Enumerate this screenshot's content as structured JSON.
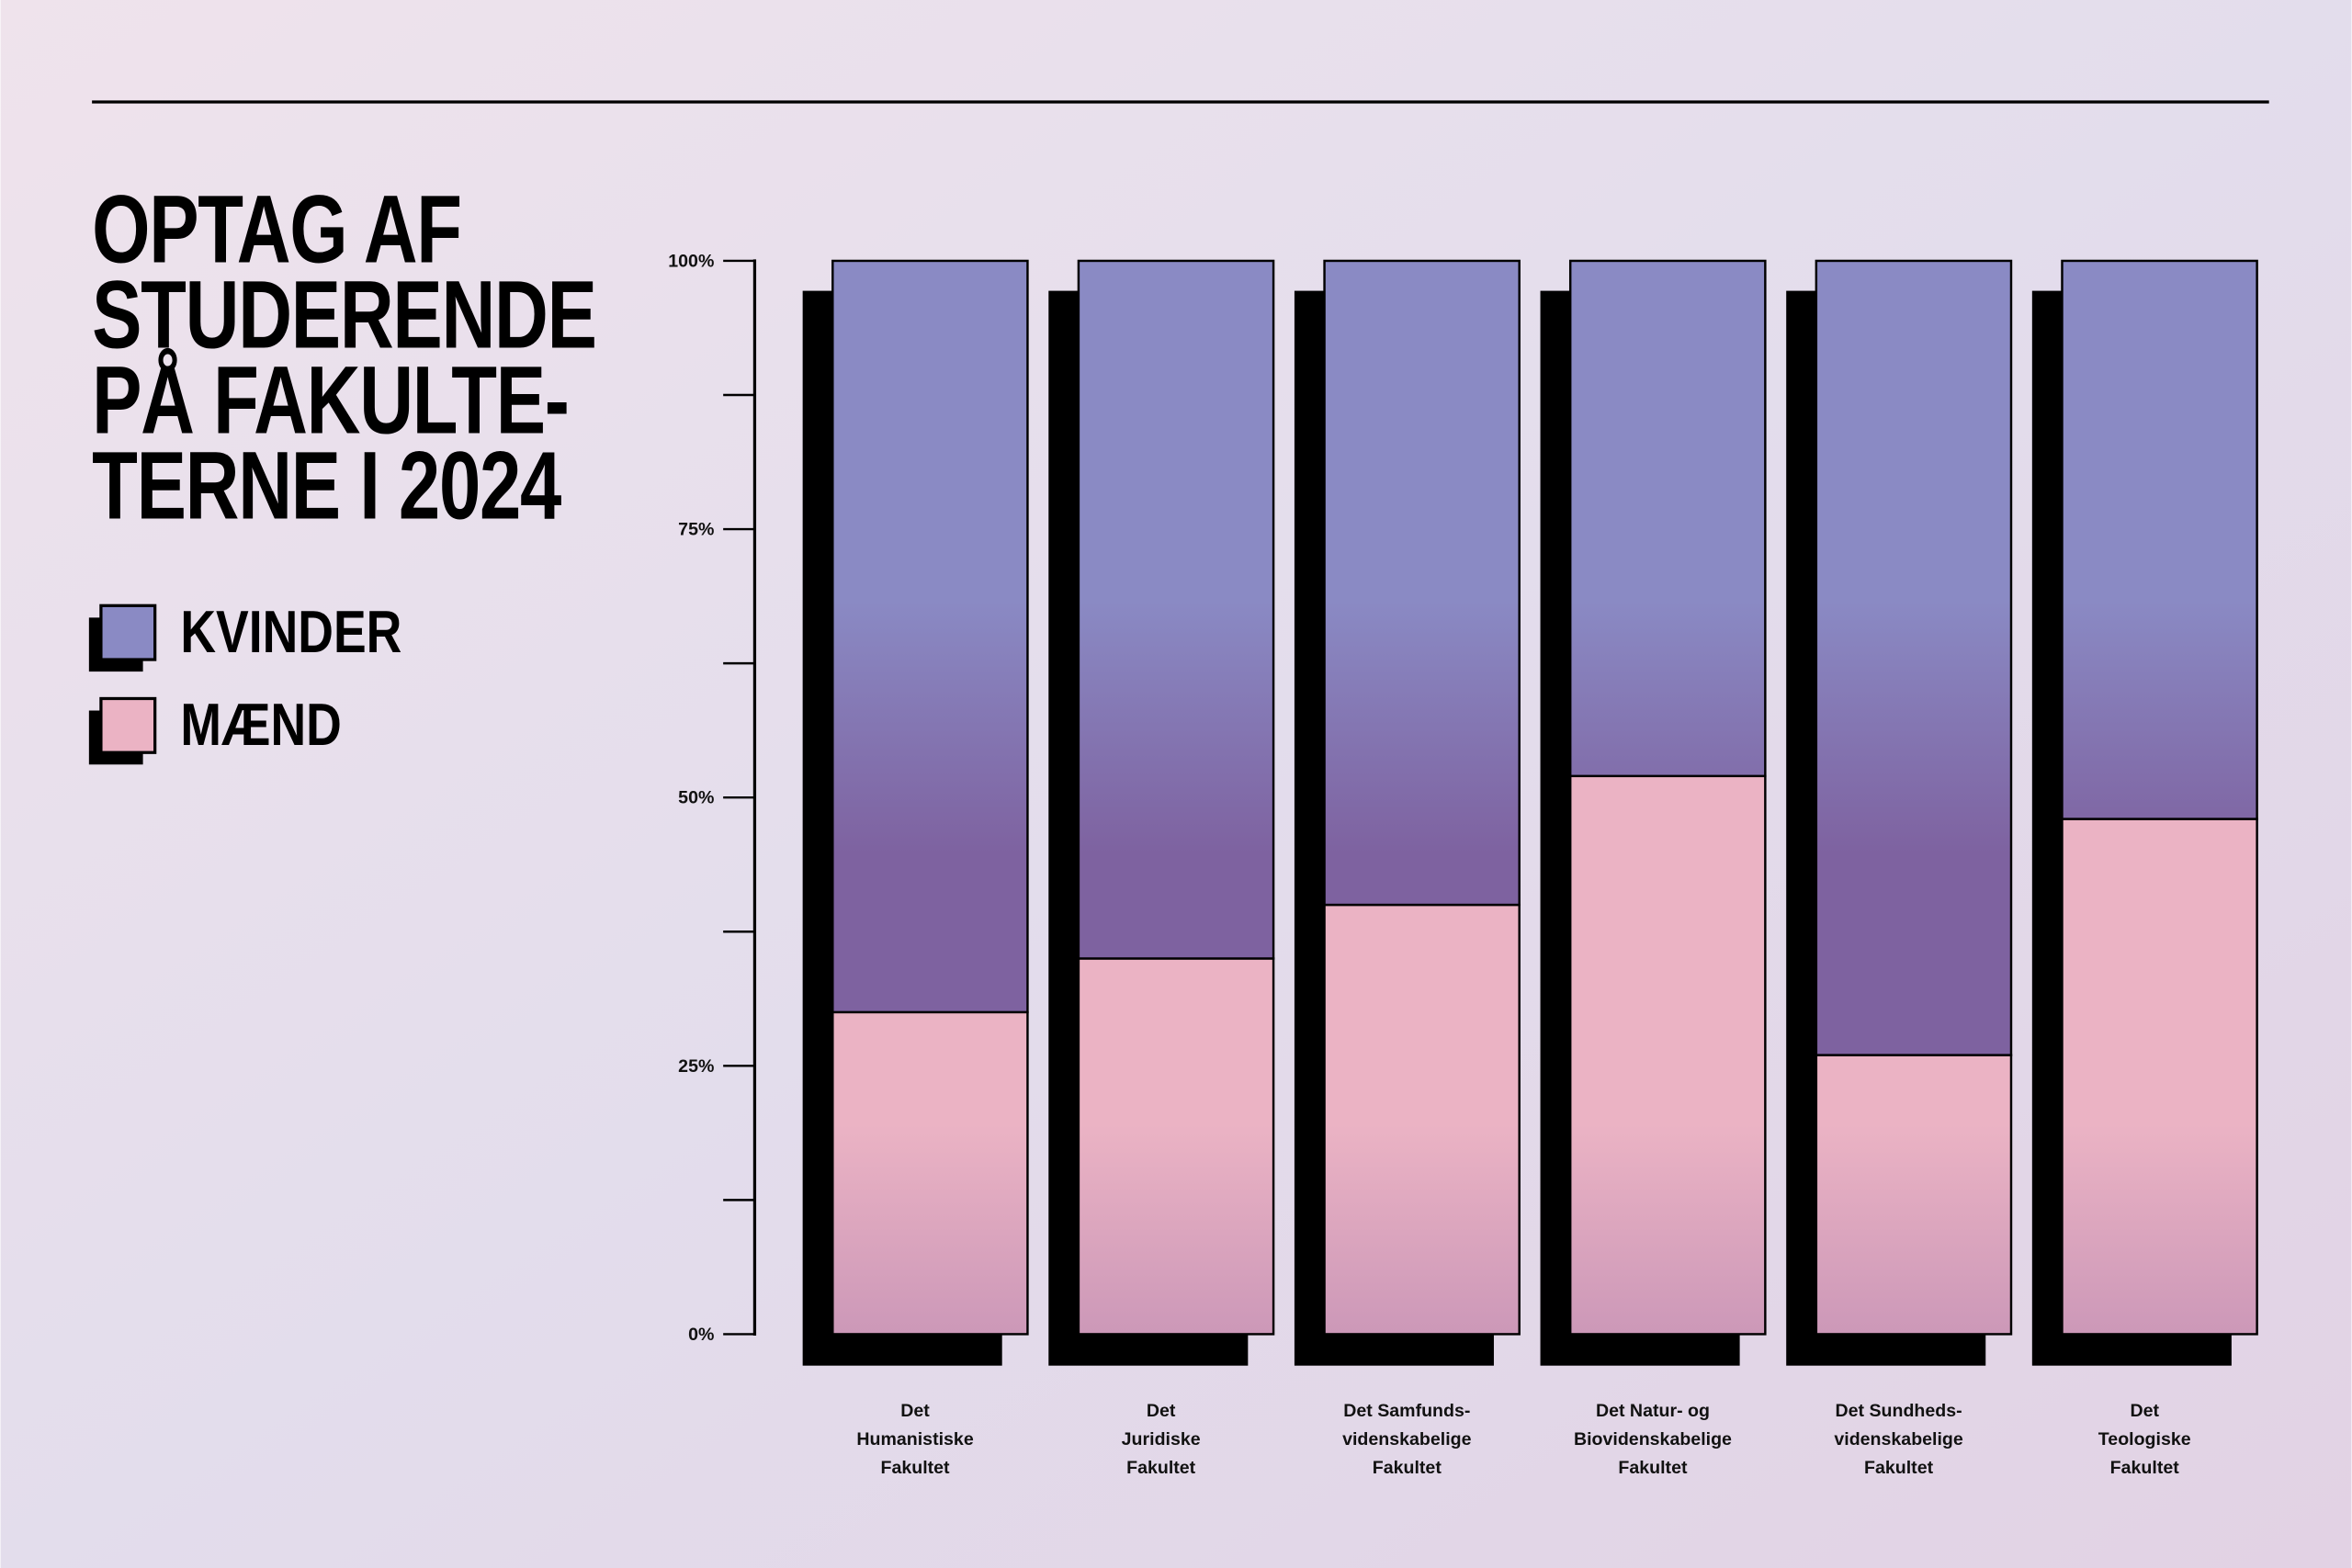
{
  "chart_data": {
    "type": "stacked_bar",
    "title": "OPTAG AF\nSTUDERENDE\nPÅ FAKULTE-\nTERNE I 2024",
    "categories": [
      "Det\nHumanistiske\nFakultet",
      "Det\nJuridiske\nFakultet",
      "Det Samfunds-\nvidenskabelige\nFakultet",
      "Det Natur- og\nBiovidenskabelige\nFakultet",
      "Det Sundheds-\nvidenskabelige\nFakultet",
      "Det\nTeologiske\nFakultet"
    ],
    "series": [
      {
        "name": "KVINDER",
        "color": "#8a8ac4",
        "values": [
          70,
          65,
          60,
          48,
          74,
          52
        ]
      },
      {
        "name": "MÆND",
        "color": "#ebb3c4",
        "values": [
          30,
          35,
          40,
          52,
          26,
          48
        ]
      }
    ],
    "ylim": [
      0,
      100
    ],
    "yticks": [
      {
        "value": 0,
        "label": "0%"
      },
      {
        "value": 25,
        "label": "25%"
      },
      {
        "value": 50,
        "label": "50%"
      },
      {
        "value": 75,
        "label": "75%"
      },
      {
        "value": 100,
        "label": "100%"
      }
    ],
    "minor_yticks": [
      12.5,
      37.5,
      62.5,
      87.5
    ],
    "stacking": "bottom-up-last-series-first"
  }
}
